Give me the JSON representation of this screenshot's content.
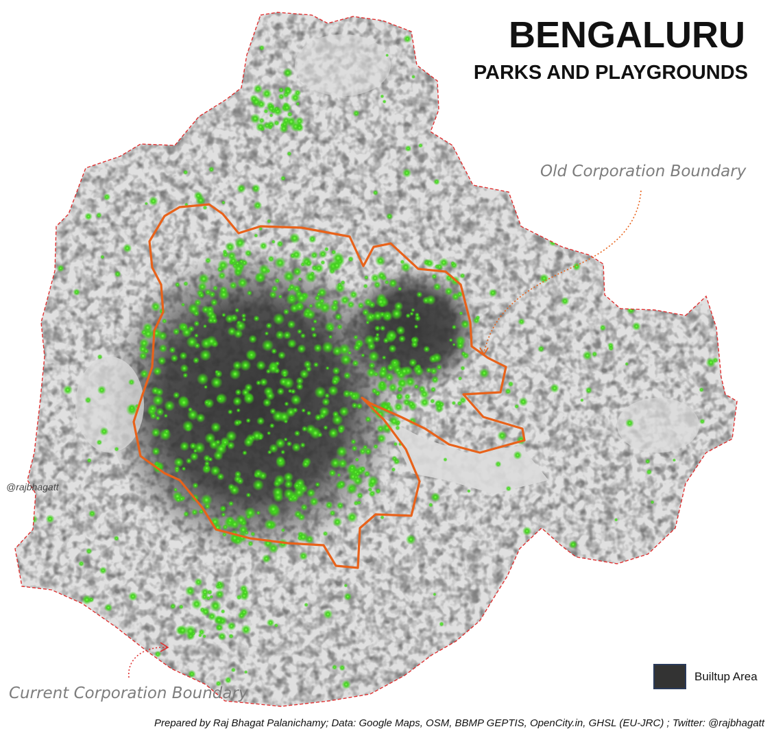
{
  "map": {
    "title": "BENGALURU",
    "subtitle": "PARKS AND PLAYGROUNDS",
    "annotations": {
      "old_boundary": "Old Corporation Boundary",
      "current_boundary": "Current Corporation Boundary"
    },
    "handle": "@rajbhagatt",
    "legend": {
      "builtup_label": "Builtup Area"
    },
    "credits": "Prepared by Raj Bhagat Palanichamy; Data: Google Maps, OSM, BBMP GEPTIS, OpenCity.in, GHSL (EU-JRC) ; Twitter: @rajbhagatt"
  },
  "colors": {
    "background": "#ffffff",
    "city_land": "#e0e0e0",
    "builtup": "#333333",
    "builtup_light": "#5a5a5a",
    "park_green": "#3ecf1a",
    "old_boundary": "#e8621a",
    "current_boundary": "#e03030"
  },
  "icons": [
    "dotted-arrow-icon",
    "legend-swatch-icon"
  ]
}
